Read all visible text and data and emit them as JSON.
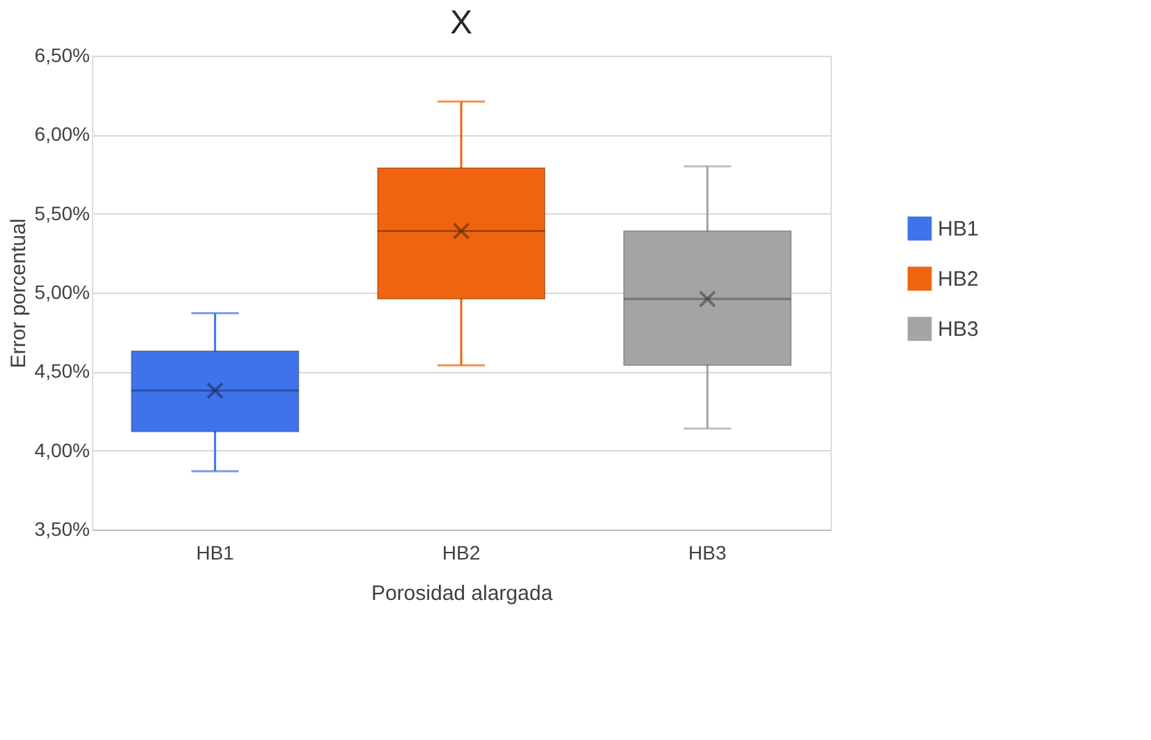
{
  "chart_data": {
    "type": "box",
    "title": "X",
    "xlabel": "Porosidad alargada",
    "ylabel": "Error porcentual",
    "categories": [
      "HB1",
      "HB2",
      "HB3"
    ],
    "series": [
      {
        "name": "HB1",
        "color": "#3f73ea",
        "boxes": [
          {
            "low": 3.87,
            "q1": 4.12,
            "median": 4.38,
            "q3": 4.63,
            "high": 4.87,
            "mean": 4.38
          },
          null,
          null
        ]
      },
      {
        "name": "HB2",
        "color": "#f0640f",
        "boxes": [
          null,
          {
            "low": 4.54,
            "q1": 4.96,
            "median": 5.39,
            "q3": 5.79,
            "high": 6.21,
            "mean": 5.39
          },
          null
        ]
      },
      {
        "name": "HB3",
        "color": "#a2a5a2",
        "boxes": [
          null,
          null,
          {
            "low": 4.14,
            "q1": 4.54,
            "median": 4.96,
            "q3": 5.39,
            "high": 5.8,
            "mean": 4.96
          }
        ]
      }
    ],
    "ylim": [
      3.5,
      6.5
    ],
    "yticks": [
      {
        "value": 3.5,
        "label": "3,50%"
      },
      {
        "value": 4.0,
        "label": "4,00%"
      },
      {
        "value": 4.5,
        "label": "4,50%"
      },
      {
        "value": 5.0,
        "label": "5,00%"
      },
      {
        "value": 5.5,
        "label": "5,50%"
      },
      {
        "value": 6.0,
        "label": "6,00%"
      },
      {
        "value": 6.5,
        "label": "6,50%"
      }
    ],
    "grid": "y",
    "legend": "right",
    "marker": "cross"
  }
}
